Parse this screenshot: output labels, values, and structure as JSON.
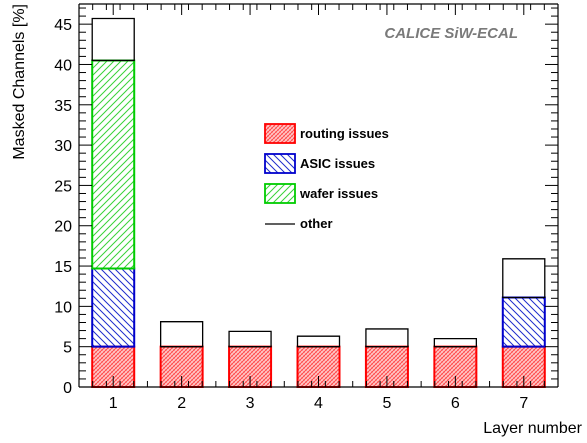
{
  "chart_data": {
    "type": "bar",
    "stacked": true,
    "annotation": "CALICE SiW-ECAL",
    "xlabel": "Layer number",
    "ylabel": "Masked Channels [%]",
    "categories": [
      "1",
      "2",
      "3",
      "4",
      "5",
      "6",
      "7"
    ],
    "ylim": [
      0,
      47.5
    ],
    "yticks": [
      0,
      5,
      10,
      15,
      20,
      25,
      30,
      35,
      40,
      45
    ],
    "grid": false,
    "legend_position": "center",
    "series": [
      {
        "name": "routing issues",
        "values": [
          5.0,
          5.0,
          5.0,
          5.0,
          5.0,
          5.0,
          5.0
        ],
        "color": "#ff0000",
        "pattern": "dense-hatch"
      },
      {
        "name": "ASIC issues",
        "values": [
          9.7,
          0.0,
          0.0,
          0.0,
          0.0,
          0.0,
          6.1
        ],
        "color": "#0000cc",
        "pattern": "diagonal-hatch"
      },
      {
        "name": "wafer issues",
        "values": [
          25.8,
          0.0,
          0.0,
          0.0,
          0.0,
          0.0,
          0.0
        ],
        "color": "#00cc00",
        "pattern": "diagonal-hatch"
      },
      {
        "name": "other",
        "values": [
          5.2,
          3.1,
          1.9,
          1.3,
          2.2,
          1.0,
          4.8
        ],
        "color": "#000000",
        "pattern": "none"
      }
    ]
  }
}
